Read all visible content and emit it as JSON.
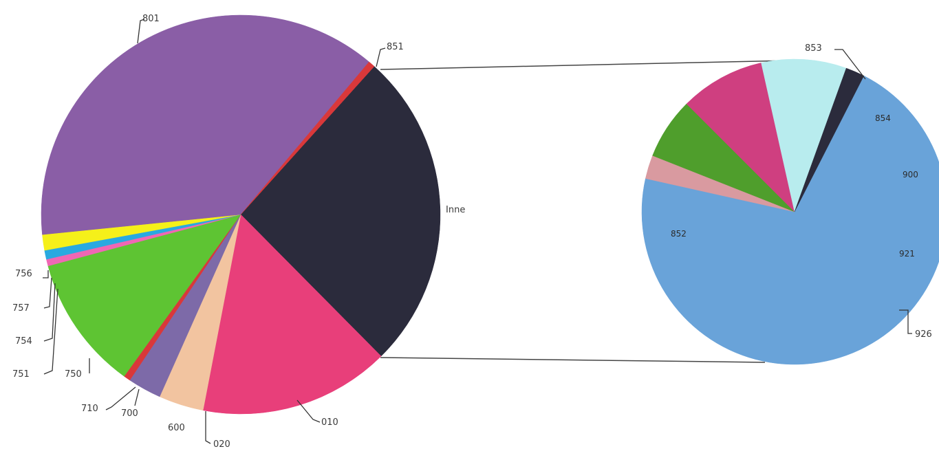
{
  "chart_data": [
    {
      "type": "pie",
      "slices": [
        {
          "label": "Inne",
          "value": 28.5,
          "color": "#2b2b3c"
        },
        {
          "label": "010",
          "value": 17.0,
          "color": "#e83f7a"
        },
        {
          "label": "020",
          "value": 4.0,
          "color": "#f2c4a0"
        },
        {
          "label": "600",
          "value": 3.0,
          "color": "#7d6aa8"
        },
        {
          "label": "700",
          "value": 0.6,
          "color": "#d9383a"
        },
        {
          "label": "710",
          "value": 0.0,
          "color": "#c0392b"
        },
        {
          "label": "750",
          "value": 12.0,
          "color": "#5ec433"
        },
        {
          "label": "751",
          "value": 0.6,
          "color": "#f067b4"
        },
        {
          "label": "754",
          "value": 0.8,
          "color": "#29a9e0"
        },
        {
          "label": "757",
          "value": 0.0,
          "color": "#ffe600"
        },
        {
          "label": "756",
          "value": 1.4,
          "color": "#f5f01a"
        },
        {
          "label": "801",
          "value": 41.5,
          "color": "#8a5ea6"
        },
        {
          "label": "851",
          "value": 0.6,
          "color": "#d9383a"
        }
      ]
    },
    {
      "type": "pie",
      "slices": [
        {
          "label": "852",
          "value": 71.0,
          "color": "#69a3d9"
        },
        {
          "label": "853",
          "value": 2.5,
          "color": "#d99aa0"
        },
        {
          "label": "854",
          "value": 6.5,
          "color": "#4f9e2c"
        },
        {
          "label": "900",
          "value": 9.0,
          "color": "#cf3f80"
        },
        {
          "label": "921",
          "value": 9.0,
          "color": "#b8ecee"
        },
        {
          "label": "926",
          "value": 2.0,
          "color": "#2b2b3c"
        }
      ]
    }
  ]
}
